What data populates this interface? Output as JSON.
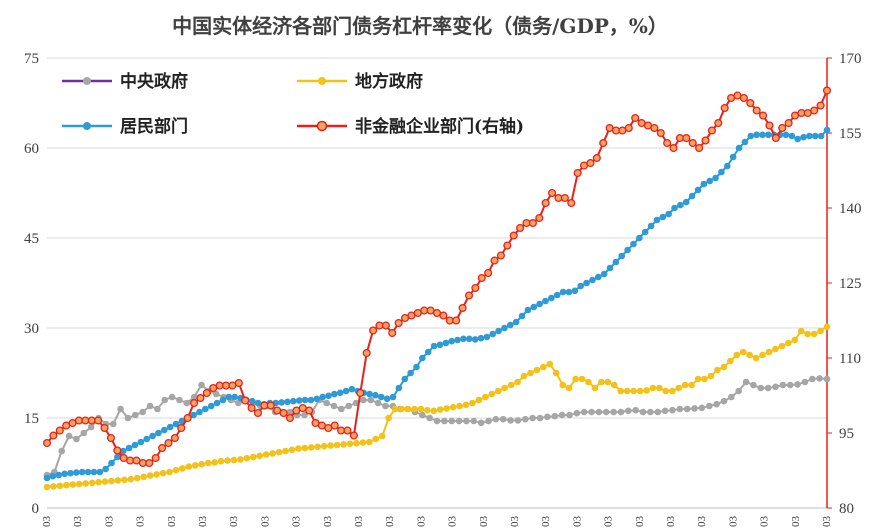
{
  "chart_data": {
    "type": "line",
    "title": "中国实体经济各部门债务杠杆率变化（债务/GDP，%）",
    "xlabel": "",
    "ylabel": "",
    "y_left": {
      "min": 0,
      "max": 75,
      "ticks": [
        "0",
        "15",
        "30",
        "45",
        "60",
        "75"
      ]
    },
    "y_right": {
      "min": 80,
      "max": 170,
      "ticks": [
        "80",
        "95",
        "110",
        "125",
        "140",
        "155",
        "170"
      ]
    },
    "x_tick_labels": [
      "03",
      "03",
      "03",
      "03",
      "03",
      "03",
      "03",
      "03",
      "03",
      "03",
      "03",
      "03",
      "03",
      "03",
      "03",
      "03",
      "03",
      "03",
      "03",
      "03",
      "03",
      "03",
      "03",
      "03",
      "03",
      "03"
    ],
    "grid": "horizontal",
    "series": [
      {
        "name": "中央政府",
        "color": "#a6a6a6",
        "axis": "left",
        "values": [
          5.5,
          6,
          9.5,
          12,
          11.5,
          12.5,
          13.5,
          15,
          14,
          14,
          16.5,
          15,
          15.5,
          16,
          17,
          16.5,
          18,
          18.5,
          18,
          17.5,
          18.5,
          20.5,
          19.5,
          19,
          18.5,
          18,
          17.5,
          18,
          17.5,
          17,
          17,
          16,
          16,
          16,
          15.5,
          15.5,
          16,
          18,
          17.5,
          17,
          16.5,
          17,
          17.5,
          18,
          18,
          17.5,
          17,
          17,
          16.5,
          16.5,
          16,
          15.5,
          15,
          14.5,
          14.5,
          14.5,
          14.5,
          14.5,
          14.5,
          14.2,
          14.5,
          14.8,
          14.8,
          14.6,
          14.6,
          14.8,
          15,
          15,
          15.2,
          15.3,
          15.5,
          15.5,
          15.8,
          16,
          16,
          16,
          16,
          16,
          16,
          16.2,
          16.3,
          16,
          16,
          16,
          16.2,
          16.3,
          16.5,
          16.5,
          16.6,
          16.7,
          17,
          17.3,
          17.8,
          18.5,
          19.5,
          21,
          20.5,
          20,
          20,
          20.2,
          20.5,
          20.5,
          20.6,
          21,
          21.5,
          21.6,
          21.5
        ]
      },
      {
        "name": "地方政府",
        "color": "#f2c219",
        "axis": "left",
        "values": [
          3.5,
          3.6,
          3.7,
          3.8,
          3.9,
          4,
          4.1,
          4.2,
          4.3,
          4.4,
          4.5,
          4.6,
          4.7,
          4.8,
          5,
          5.2,
          5.4,
          5.6,
          5.8,
          6,
          6.3,
          6.6,
          6.9,
          7.1,
          7.3,
          7.5,
          7.6,
          7.8,
          7.9,
          8,
          8.1,
          8.3,
          8.5,
          8.7,
          8.9,
          9.1,
          9.3,
          9.5,
          9.7,
          9.9,
          10,
          10.1,
          10.2,
          10.3,
          10.4,
          10.5,
          10.6,
          10.7,
          10.8,
          10.9,
          11,
          11.5,
          12,
          15,
          16.5,
          16.5,
          16.5,
          16.5,
          16.5,
          16.3,
          16.2,
          16.4,
          16.6,
          16.8,
          17,
          17.2,
          17.5,
          18,
          18.5,
          19,
          19.5,
          20,
          20.5,
          21,
          22,
          22.5,
          23,
          23.5,
          24,
          22.5,
          20.5,
          20,
          21.5,
          21.5,
          21,
          20,
          21,
          21,
          20.5,
          19.5,
          19.5,
          19.5,
          19.5,
          19.6,
          20,
          20,
          19.5,
          19.5,
          20,
          20.5,
          20.5,
          21.5,
          21.5,
          22,
          23,
          23.5,
          24.5,
          25.5,
          26,
          25.5,
          25,
          25.5,
          26,
          26.5,
          27,
          27.5,
          28,
          29.5,
          29,
          29,
          29.5,
          30.2
        ]
      },
      {
        "name": "居民部门",
        "color": "#2e9bd6",
        "axis": "left",
        "values": [
          5,
          5.3,
          5.5,
          5.7,
          5.8,
          5.9,
          6,
          6,
          6,
          6,
          6.5,
          7.5,
          8.5,
          9.5,
          10,
          10.5,
          11,
          11.5,
          12,
          12.5,
          13,
          13.5,
          14,
          14.5,
          15,
          15.5,
          16,
          16.5,
          17,
          17.5,
          18,
          18.5,
          18.5,
          18.3,
          18,
          17.8,
          17.5,
          17.3,
          17.5,
          17.5,
          17.6,
          17.7,
          17.8,
          17.9,
          18,
          18,
          18.2,
          18.5,
          18.7,
          19,
          19.2,
          19.5,
          19.8,
          19.5,
          19.2,
          19,
          18.8,
          18.5,
          18.2,
          18.5,
          20,
          21.5,
          22.5,
          23.5,
          25,
          26,
          27,
          27.2,
          27.5,
          27.8,
          28,
          28.2,
          28.2,
          28.1,
          28.3,
          28.5,
          29,
          29.5,
          30,
          30.5,
          31,
          32,
          33,
          33.5,
          34,
          34.5,
          35,
          35.5,
          36,
          36,
          36.2,
          37,
          37.5,
          38,
          38.5,
          39,
          40,
          41,
          42,
          43,
          44,
          45,
          46,
          47,
          48,
          48.5,
          49,
          50,
          50.5,
          51,
          52,
          53,
          54,
          54.5,
          55,
          56,
          57,
          58.5,
          60,
          61,
          62,
          62.2,
          62.2,
          62.2,
          62.2,
          62.2,
          62.2,
          62,
          61.5,
          61.8,
          62,
          62,
          62,
          63
        ]
      },
      {
        "name": "非金融企业部门(右轴)",
        "color": "#e8201a",
        "axis": "right",
        "values": [
          93,
          94.5,
          95.5,
          96.5,
          97,
          97.5,
          97.5,
          97.5,
          97.5,
          96,
          94,
          91.5,
          90,
          89.5,
          89.5,
          89,
          89,
          90,
          92,
          93,
          94,
          96,
          98,
          101,
          102,
          103,
          104,
          104.5,
          104.5,
          104.5,
          105,
          101.5,
          100,
          99,
          100.5,
          100.5,
          99.5,
          99,
          98,
          99.5,
          100,
          99.5,
          97,
          96.5,
          96,
          96.5,
          95.5,
          95.5,
          94.5,
          103,
          111,
          115.5,
          116.5,
          116.5,
          115,
          117,
          118,
          118.5,
          119,
          119.5,
          119.5,
          119,
          118.5,
          117.5,
          117.5,
          120,
          122.5,
          124,
          126,
          127,
          129.5,
          130.5,
          132.5,
          134.5,
          136,
          137,
          137,
          138,
          141,
          143,
          142,
          142,
          141,
          147,
          148.5,
          149,
          150,
          153,
          156,
          155.5,
          155.5,
          156,
          158,
          157,
          156.5,
          156,
          155,
          153,
          152,
          154,
          154,
          153,
          152,
          153.5,
          155.5,
          157,
          160,
          162,
          162.5,
          162,
          161,
          159.5,
          158.5,
          156.5,
          154,
          156,
          157,
          158.5,
          159,
          159,
          159.5,
          160.5,
          163.5
        ]
      }
    ]
  }
}
